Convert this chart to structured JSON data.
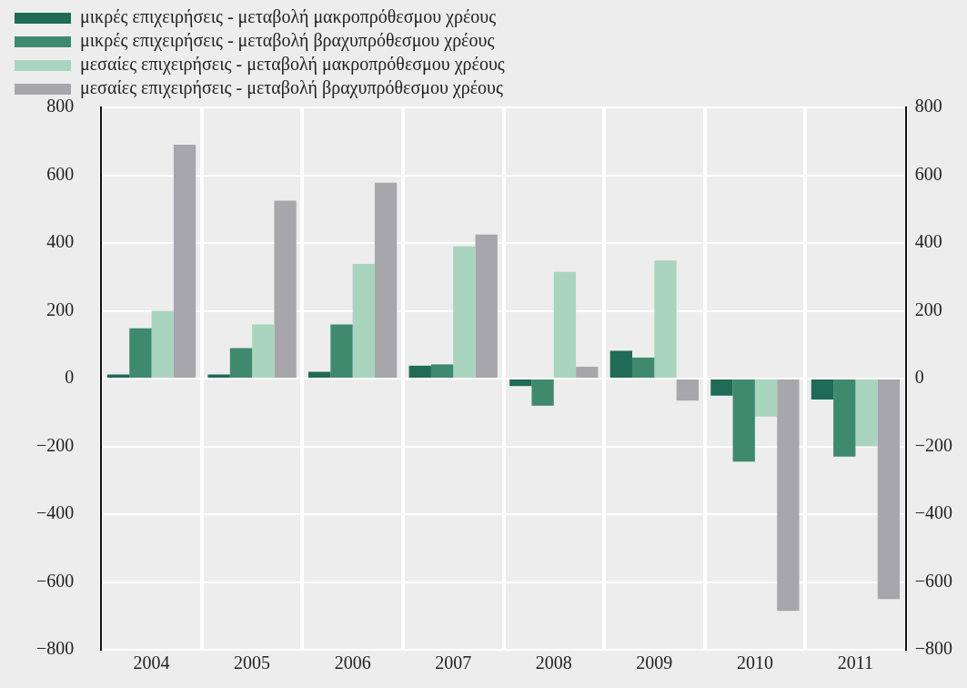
{
  "chart_data": {
    "type": "bar",
    "categories": [
      "2004",
      "2005",
      "2006",
      "2007",
      "2008",
      "2009",
      "2010",
      "2011"
    ],
    "series": [
      {
        "name": "μικρές επιχειρήσεις - μεταβολή μακροπρόθεσμου χρέους",
        "color": "#1f6b55",
        "values": [
          12,
          12,
          20,
          38,
          -22,
          82,
          -50,
          -62
        ]
      },
      {
        "name": "μικρές επιχειρήσεις - μεταβολή βραχυπρόθεσμου χρέους",
        "color": "#3f8a6f",
        "values": [
          148,
          90,
          160,
          42,
          -80,
          62,
          -245,
          -230
        ]
      },
      {
        "name": "μεσαίες επιχειρήσεις - μεταβολή μακροπρόθεσμου χρέους",
        "color": "#a9d4bd",
        "values": [
          200,
          160,
          338,
          390,
          315,
          348,
          -112,
          -200
        ]
      },
      {
        "name": "μεσαίες επιχειρήσεις - μεταβολή βραχυπρόθεσμου χρέους",
        "color": "#a7a6ab",
        "values": [
          690,
          525,
          578,
          425,
          35,
          -65,
          -685,
          -650
        ]
      }
    ],
    "ylim": [
      -800,
      800
    ],
    "yticks": [
      -800,
      -600,
      -400,
      -200,
      0,
      200,
      400,
      600,
      800
    ],
    "y2lim": [
      -800,
      800
    ],
    "y2ticks": [
      -800,
      -600,
      -400,
      -200,
      0,
      200,
      400,
      600,
      800
    ],
    "grid": true,
    "legend": "top left"
  }
}
